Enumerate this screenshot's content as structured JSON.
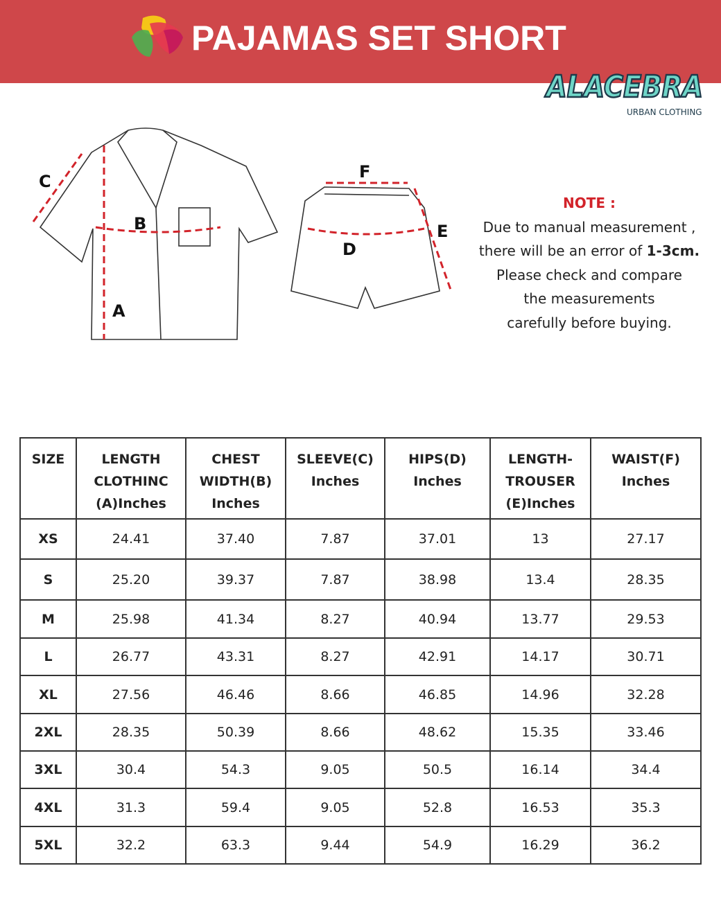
{
  "header": {
    "title": "PAJAMAS SET SHORT",
    "brand": "ALACEBRA",
    "brand_sub": "URBAN CLOTHING",
    "colors": {
      "banner": "#cf474a",
      "note_heading": "#d2232a",
      "measure_line": "#d2232a"
    }
  },
  "diagram": {
    "labels": {
      "a": "A",
      "b": "B",
      "c": "C",
      "d": "D",
      "e": "E",
      "f": "F"
    }
  },
  "note": {
    "heading": "NOTE :",
    "line1": "Due to manual measurement ,",
    "line2_pre": "there will be an error of ",
    "line2_bold": "1-3cm.",
    "line3": "Please check and compare",
    "line4": "the measurements",
    "line5": "carefully before buying."
  },
  "table": {
    "headers": [
      [
        "SIZE"
      ],
      [
        "LENGTH",
        "CLOTHINC",
        "(A)Inches"
      ],
      [
        "CHEST",
        "WIDTH(B)",
        "Inches"
      ],
      [
        "SLEEVE(C)",
        "Inches"
      ],
      [
        "HIPS(D)",
        "Inches"
      ],
      [
        "LENGTH-",
        "TROUSER",
        "(E)Inches"
      ],
      [
        "WAIST(F)",
        "Inches"
      ]
    ],
    "rows": [
      [
        "XS",
        "24.41",
        "37.40",
        "7.87",
        "37.01",
        "13",
        "27.17"
      ],
      [
        "S",
        "25.20",
        "39.37",
        "7.87",
        "38.98",
        "13.4",
        "28.35"
      ],
      [
        "M",
        "25.98",
        "41.34",
        "8.27",
        "40.94",
        "13.77",
        "29.53"
      ],
      [
        "L",
        "26.77",
        "43.31",
        "8.27",
        "42.91",
        "14.17",
        "30.71"
      ],
      [
        "XL",
        "27.56",
        "46.46",
        "8.66",
        "46.85",
        "14.96",
        "32.28"
      ],
      [
        "2XL",
        "28.35",
        "50.39",
        "8.66",
        "48.62",
        "15.35",
        "33.46"
      ],
      [
        "3XL",
        "30.4",
        "54.3",
        "9.05",
        "50.5",
        "16.14",
        "34.4"
      ],
      [
        "4XL",
        "31.3",
        "59.4",
        "9.05",
        "52.8",
        "16.53",
        "35.3"
      ],
      [
        "5XL",
        "32.2",
        "63.3",
        "9.44",
        "54.9",
        "16.29",
        "36.2"
      ]
    ]
  }
}
